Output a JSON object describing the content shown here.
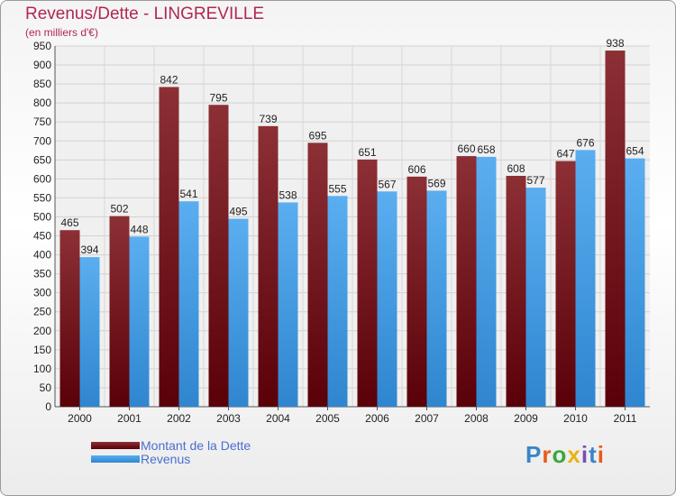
{
  "header": {
    "title": "Revenus/Dette - LINGREVILLE",
    "subtitle": "(en milliers d'€)"
  },
  "logo": {
    "text": "Proxiti",
    "letters": [
      "P",
      "r",
      "o",
      "x",
      "i",
      "t",
      "i"
    ],
    "letter_colors": [
      "#3a86c8",
      "#e85a1a",
      "#3aa83a",
      "#e8b416",
      "#7a4fb0",
      "#3a86c8",
      "#e85a1a"
    ]
  },
  "chart_data": {
    "type": "bar",
    "title": "Revenus/Dette - LINGREVILLE",
    "ylabel": "(en milliers d'€)",
    "xlabel": "",
    "ylim": [
      0,
      950
    ],
    "ytick_step": 50,
    "grid": true,
    "legend_position": "bottom-left",
    "categories": [
      "2000",
      "2001",
      "2002",
      "2003",
      "2004",
      "2005",
      "2006",
      "2007",
      "2008",
      "2009",
      "2010",
      "2011"
    ],
    "series": [
      {
        "name": "Montant de la Dette",
        "color": "#7a1f24",
        "values": [
          465,
          502,
          842,
          795,
          739,
          695,
          651,
          606,
          660,
          608,
          647,
          938
        ]
      },
      {
        "name": "Revenus",
        "color": "#4a9fe0",
        "values": [
          394,
          448,
          541,
          495,
          538,
          555,
          567,
          569,
          658,
          577,
          676,
          654
        ]
      }
    ]
  }
}
